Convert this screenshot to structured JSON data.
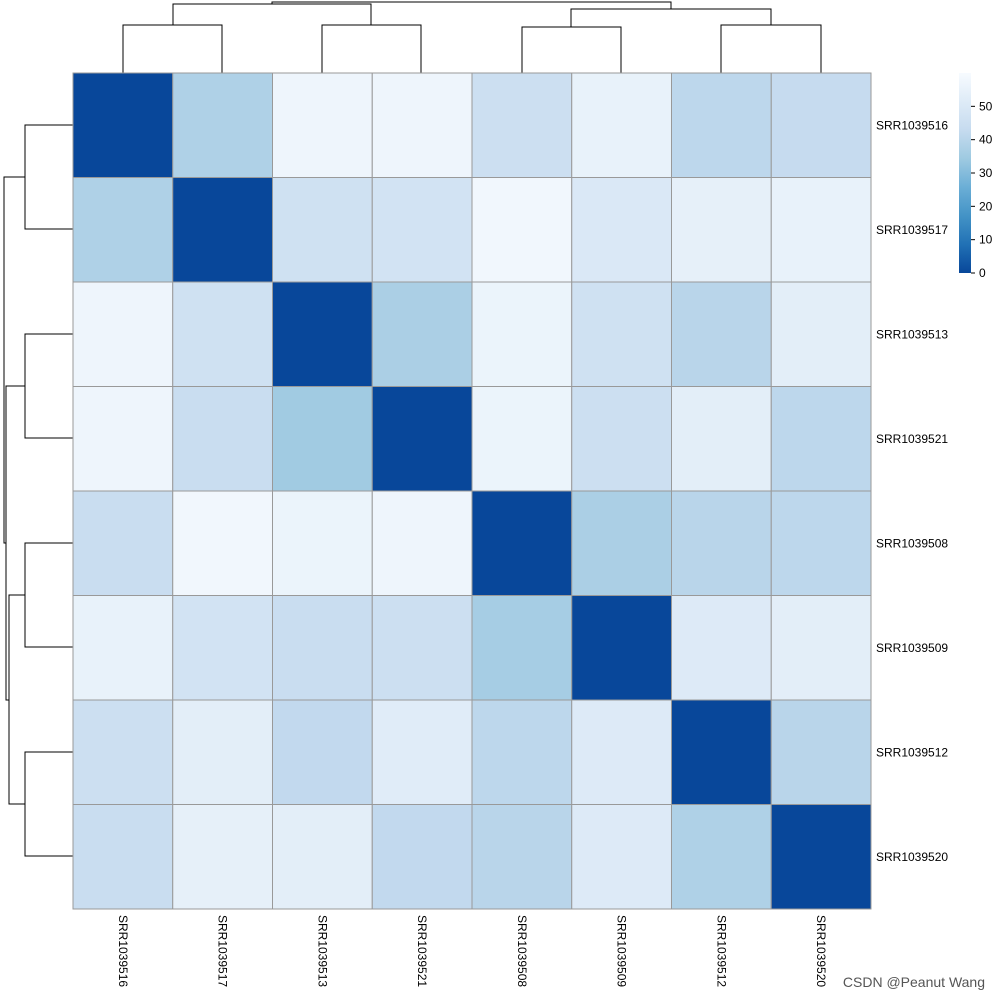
{
  "chart_data": {
    "type": "heatmap",
    "title": "",
    "xlabel": "",
    "ylabel": "",
    "rows": [
      "SRR1039516",
      "SRR1039517",
      "SRR1039513",
      "SRR1039521",
      "SRR1039508",
      "SRR1039509",
      "SRR1039512",
      "SRR1039520"
    ],
    "columns": [
      "SRR1039516",
      "SRR1039517",
      "SRR1039513",
      "SRR1039521",
      "SRR1039508",
      "SRR1039509",
      "SRR1039512",
      "SRR1039520"
    ],
    "values": [
      [
        0,
        38,
        57,
        57,
        45,
        55,
        41,
        43
      ],
      [
        38,
        0,
        46,
        47,
        58,
        50,
        54,
        55
      ],
      [
        57,
        46,
        0,
        37,
        56,
        46,
        40,
        53
      ],
      [
        57,
        44,
        35,
        0,
        56,
        45,
        53,
        41
      ],
      [
        44,
        58,
        56,
        57,
        0,
        37,
        40,
        41
      ],
      [
        55,
        47,
        44,
        45,
        36,
        0,
        51,
        53
      ],
      [
        45,
        53,
        42,
        52,
        41,
        51,
        0,
        40
      ],
      [
        44,
        54,
        53,
        42,
        40,
        51,
        38,
        0
      ]
    ],
    "colorbar": {
      "min": 0,
      "max": 60,
      "ticks": [
        "0",
        "10",
        "20",
        "30",
        "40",
        "50"
      ],
      "tick_values": [
        0,
        10,
        20,
        30,
        40,
        50
      ],
      "colors": [
        "#08479a",
        "#2171b5",
        "#4393c6",
        "#6baed6",
        "#9ecae1",
        "#c6dbef",
        "#deebf7",
        "#f7fbff"
      ]
    },
    "column_dendrogram": "shown on top",
    "row_dendrogram": "shown on left",
    "grid_color": "#999999"
  },
  "watermark": "CSDN @Peanut Wang"
}
